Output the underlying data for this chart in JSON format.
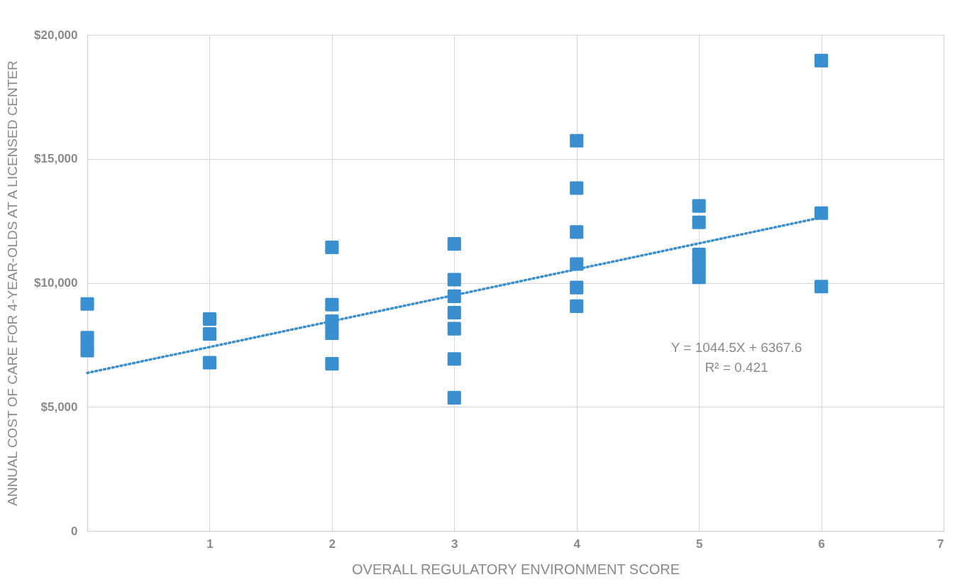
{
  "chart_data": {
    "type": "scatter",
    "xlabel": "OVERALL REGULATORY ENVIRONMENT SCORE",
    "ylabel": "ANNUAL COST OF CARE FOR 4-YEAR-OLDS AT A LICENSED CENTER",
    "xlim": [
      0,
      7
    ],
    "xticks": [
      1,
      2,
      3,
      4,
      5,
      6,
      7
    ],
    "ylim": [
      0,
      20000
    ],
    "yticks": [
      0,
      {
        "value": 5000,
        "label": "$5,000"
      },
      {
        "value": 10000,
        "label": "$10,000"
      },
      {
        "value": 15000,
        "label": "$15,000"
      },
      {
        "value": 20000,
        "label": "$20,000"
      }
    ],
    "grid": true,
    "marker": "square",
    "series": [
      {
        "color": "#3a8fd0",
        "x": [
          0,
          0,
          0,
          1,
          1,
          1,
          2,
          2,
          2,
          2,
          2,
          3,
          3,
          3,
          3,
          3,
          3,
          3,
          4,
          4,
          4,
          4,
          4,
          4,
          5,
          5,
          5,
          5,
          5,
          6,
          6,
          6
        ],
        "values": [
          9150,
          7790,
          7270,
          8540,
          7940,
          6780,
          11430,
          9120,
          8450,
          7970,
          6740,
          11570,
          10130,
          9460,
          8800,
          8150,
          6930,
          5370,
          15730,
          13820,
          12050,
          10760,
          9810,
          9060,
          13100,
          12440,
          11140,
          10680,
          10220,
          18960,
          12810,
          9850
        ]
      },
      {
        "type": "line",
        "color": "#3a8fd0",
        "line_style": "dotted",
        "marker": "none",
        "x": [
          0,
          6
        ],
        "values": [
          6368,
          12635
        ]
      }
    ],
    "annotations": [
      "Y = 1044.5X + 6367.6",
      "R² = 0.421"
    ]
  }
}
